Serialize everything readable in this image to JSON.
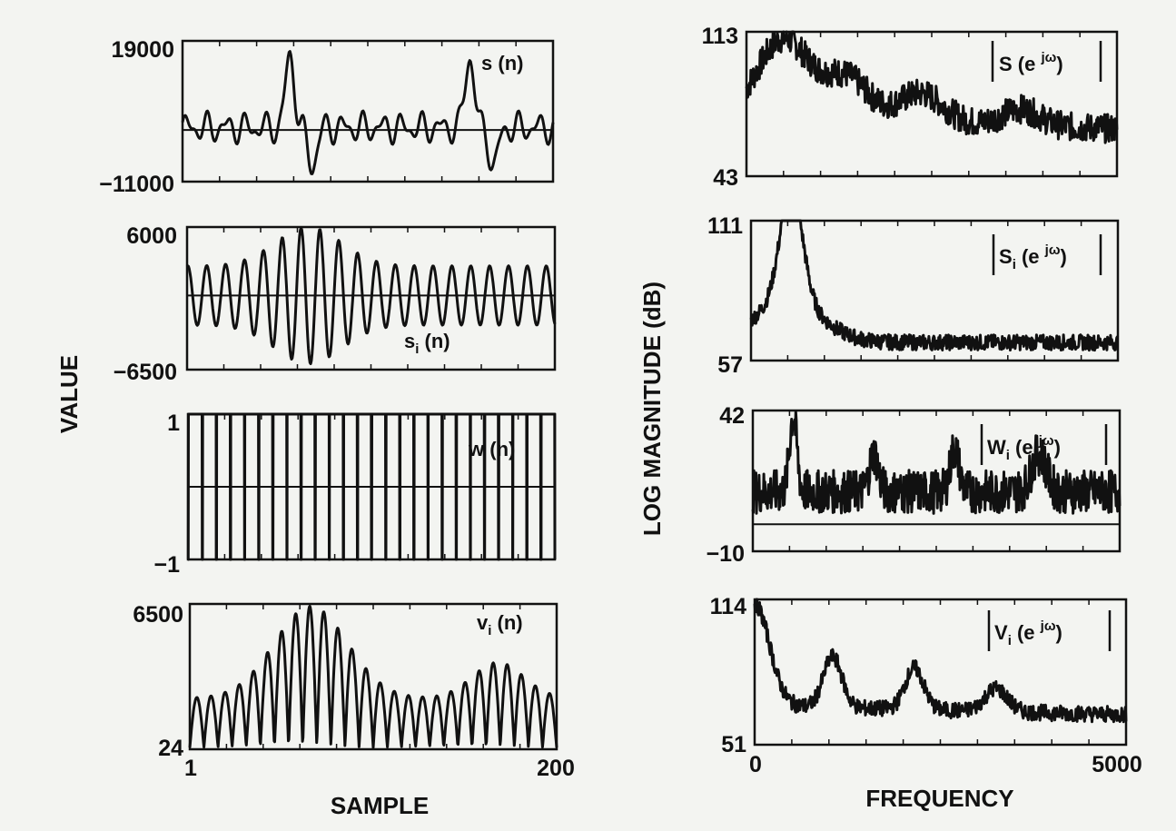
{
  "figure": {
    "left_column": {
      "ylabel": "VALUE",
      "xlabel": "SAMPLE",
      "xticks": [
        "1",
        "200"
      ]
    },
    "right_column": {
      "ylabel": "LOG MAGNITUDE (dB)",
      "xlabel": "FREQUENCY",
      "xticks": [
        "0",
        "5000"
      ]
    }
  },
  "chart_data": [
    {
      "type": "line",
      "panel": "s(n)",
      "label": {
        "pre": "s",
        "sub": "",
        "post": " (n)",
        "magnitude": false
      },
      "x_range": [
        1,
        200
      ],
      "ylim": [
        -11000,
        19000
      ],
      "ytick_labels": [
        "19000",
        "−11000"
      ],
      "baseline": 0,
      "waveform": "speech segment, peaks near 19000 at samples ~58 and ~153, troughs near -11000"
    },
    {
      "type": "line",
      "panel": "s_i(n)",
      "label": {
        "pre": "s",
        "sub": "i",
        "post": " (n)",
        "magnitude": false
      },
      "x_range": [
        1,
        200
      ],
      "ylim": [
        -6500,
        6000
      ],
      "ytick_labels": [
        "6000",
        "−6500"
      ],
      "baseline": 0,
      "waveform": "oscillation, largest swings near samples 55-75"
    },
    {
      "type": "line",
      "panel": "w(n)",
      "label": {
        "pre": "w",
        "sub": "",
        "post": " (n)",
        "magnitude": false
      },
      "x_range": [
        1,
        200
      ],
      "ylim": [
        -1,
        1
      ],
      "ytick_labels": [
        "1",
        "−1"
      ],
      "baseline": 0,
      "pulse_count": 26,
      "waveform": "train of unit pulses between -1 and 1"
    },
    {
      "type": "line",
      "panel": "v_i(n)",
      "label": {
        "pre": "v",
        "sub": "i",
        "post": " (n)",
        "magnitude": false
      },
      "x_range": [
        1,
        200
      ],
      "ylim": [
        24,
        6500
      ],
      "ytick_labels": [
        "6500",
        "24"
      ],
      "waveform": "rectified oscillation, envelope peaking near sample 65 at ~6500"
    },
    {
      "type": "line",
      "panel": "|S(e^jw)|",
      "label": {
        "pre": "S",
        "sub": "",
        "post": " (e ",
        "sup": "jω",
        "magnitude": true
      },
      "x_range": [
        0,
        5000
      ],
      "ylim": [
        43,
        113
      ],
      "ytick_labels": [
        "113",
        "43"
      ],
      "waveform": "spectrum peaking ~113 dB near 400 Hz, decaying to ~70 dB by 5000 Hz"
    },
    {
      "type": "line",
      "panel": "|S_i(e^jw)|",
      "label": {
        "pre": "S",
        "sub": "i",
        "post": " (e ",
        "sup": "jω",
        "magnitude": true
      },
      "x_range": [
        0,
        5000
      ],
      "ylim": [
        57,
        111
      ],
      "ytick_labels": [
        "111",
        "57"
      ],
      "waveform": "sharp resonance ~111 dB near 500 Hz, noise floor ~62 dB above 2000 Hz"
    },
    {
      "type": "line",
      "panel": "|W_i(e^jw)|",
      "label": {
        "pre": "W",
        "sub": "i",
        "post": " (e ",
        "sup": "jω",
        "magnitude": true
      },
      "x_range": [
        0,
        5000
      ],
      "ylim": [
        -10,
        42
      ],
      "ytick_labels": [
        "42",
        "−10"
      ],
      "baseline": 0,
      "waveform": "harmonic peaks near 500, 1600, 2700, 3900 Hz; highest ~42 dB near 500 Hz"
    },
    {
      "type": "line",
      "panel": "|V_i(e^jw)|",
      "label": {
        "pre": "V",
        "sub": "i",
        "post": " (e ",
        "sup": "jω",
        "magnitude": true
      },
      "x_range": [
        0,
        5000
      ],
      "ylim": [
        51,
        114
      ],
      "ytick_labels": [
        "114",
        "51"
      ],
      "waveform": "~114 dB at 0 Hz, peaks near 1100, 2200, 3300 Hz, decaying to ~65 dB"
    }
  ]
}
